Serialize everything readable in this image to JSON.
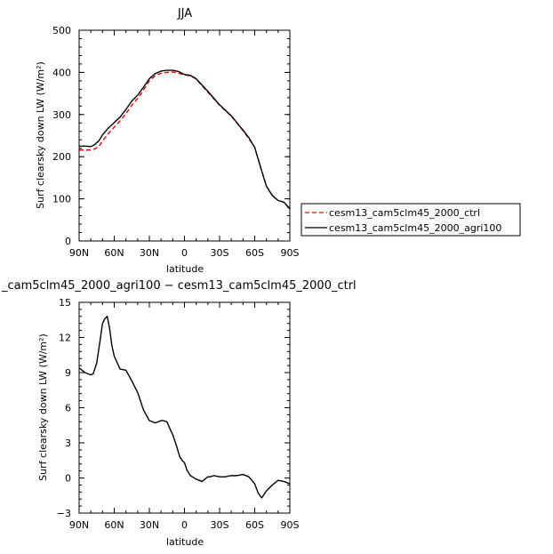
{
  "chart_data": [
    {
      "type": "line",
      "title": "JJA",
      "xlabel": "latitude",
      "ylabel": "Surf clearsky down LW (W/m²)",
      "xlim": [
        90,
        -90
      ],
      "ylim": [
        0,
        500
      ],
      "x_ticks": [
        90,
        60,
        30,
        0,
        -30,
        -60,
        -90
      ],
      "x_tick_labels": [
        "90N",
        "60N",
        "30N",
        "0",
        "30S",
        "60S",
        "90S"
      ],
      "y_ticks": [
        0,
        100,
        200,
        300,
        400,
        500
      ],
      "y_tick_labels": [
        "0",
        "100",
        "200",
        "300",
        "400",
        "500"
      ],
      "legend_position": "right",
      "series": [
        {
          "name": "cesm13_cam5clm45_2000_ctrl",
          "color": "#e00000",
          "dash": "dashed",
          "x": [
            90,
            85,
            80,
            77,
            73,
            70,
            65,
            60,
            55,
            50,
            45,
            40,
            35,
            30,
            25,
            20,
            15,
            10,
            5,
            0,
            -5,
            -10,
            -20,
            -30,
            -40,
            -50,
            -55,
            -60,
            -65,
            -70,
            -75,
            -80,
            -85,
            -90
          ],
          "y": [
            216,
            216,
            216,
            218,
            225,
            237,
            255,
            270,
            285,
            302,
            322,
            338,
            358,
            380,
            392,
            398,
            400,
            401,
            398,
            394,
            392,
            384,
            353,
            322,
            296,
            262,
            243,
            222,
            175,
            130,
            108,
            96,
            92,
            76
          ]
        },
        {
          "name": "cesm13_cam5clm45_2000_agri100",
          "color": "#000000",
          "dash": "solid",
          "x": [
            90,
            85,
            80,
            77,
            73,
            70,
            65,
            60,
            55,
            50,
            45,
            40,
            35,
            30,
            25,
            20,
            15,
            10,
            5,
            0,
            -5,
            -10,
            -20,
            -30,
            -40,
            -50,
            -55,
            -60,
            -65,
            -70,
            -75,
            -80,
            -85,
            -90
          ],
          "y": [
            225,
            225,
            224,
            228,
            238,
            252,
            268,
            281,
            294,
            312,
            332,
            346,
            365,
            385,
            397,
            403,
            405,
            405,
            402,
            395,
            393,
            385,
            355,
            323,
            297,
            263,
            245,
            222,
            175,
            130,
            108,
            96,
            92,
            76
          ]
        }
      ]
    },
    {
      "type": "line",
      "title": "_cam5clm45_2000_agri100 − cesm13_cam5clm45_2000_ctrl",
      "xlabel": "latitude",
      "ylabel": "Surf clearsky down LW (W/m²)",
      "xlim": [
        90,
        -90
      ],
      "ylim": [
        -3,
        15
      ],
      "x_ticks": [
        90,
        60,
        30,
        0,
        -30,
        -60,
        -90
      ],
      "x_tick_labels": [
        "90N",
        "60N",
        "30N",
        "0",
        "30S",
        "60S",
        "90S"
      ],
      "y_ticks": [
        -3,
        0,
        3,
        6,
        9,
        12,
        15
      ],
      "y_tick_labels": [
        "−3",
        "0",
        "3",
        "6",
        "9",
        "12",
        "15"
      ],
      "series": [
        {
          "name": "",
          "color": "#000000",
          "dash": "solid",
          "x": [
            90,
            85,
            80,
            78,
            75,
            72,
            70,
            68,
            66,
            64,
            62,
            60,
            55,
            50,
            45,
            40,
            35,
            30,
            25,
            20,
            18,
            15,
            12,
            10,
            7,
            4,
            2,
            0,
            -2,
            -5,
            -10,
            -15,
            -20,
            -22,
            -25,
            -30,
            -35,
            -40,
            -45,
            -50,
            -55,
            -60,
            -63,
            -66,
            -70,
            -75,
            -80,
            -85,
            -90
          ],
          "y": [
            9.4,
            9.0,
            8.8,
            8.9,
            9.8,
            11.8,
            13.2,
            13.6,
            13.8,
            12.8,
            11.3,
            10.4,
            9.3,
            9.2,
            8.3,
            7.3,
            5.8,
            4.9,
            4.7,
            4.9,
            4.9,
            4.8,
            4.1,
            3.7,
            2.8,
            1.8,
            1.5,
            1.3,
            0.7,
            0.2,
            -0.1,
            -0.3,
            0.1,
            0.1,
            0.2,
            0.1,
            0.1,
            0.2,
            0.2,
            0.3,
            0.1,
            -0.5,
            -1.3,
            -1.7,
            -1.1,
            -0.6,
            -0.2,
            -0.3,
            -0.5
          ]
        }
      ]
    }
  ]
}
